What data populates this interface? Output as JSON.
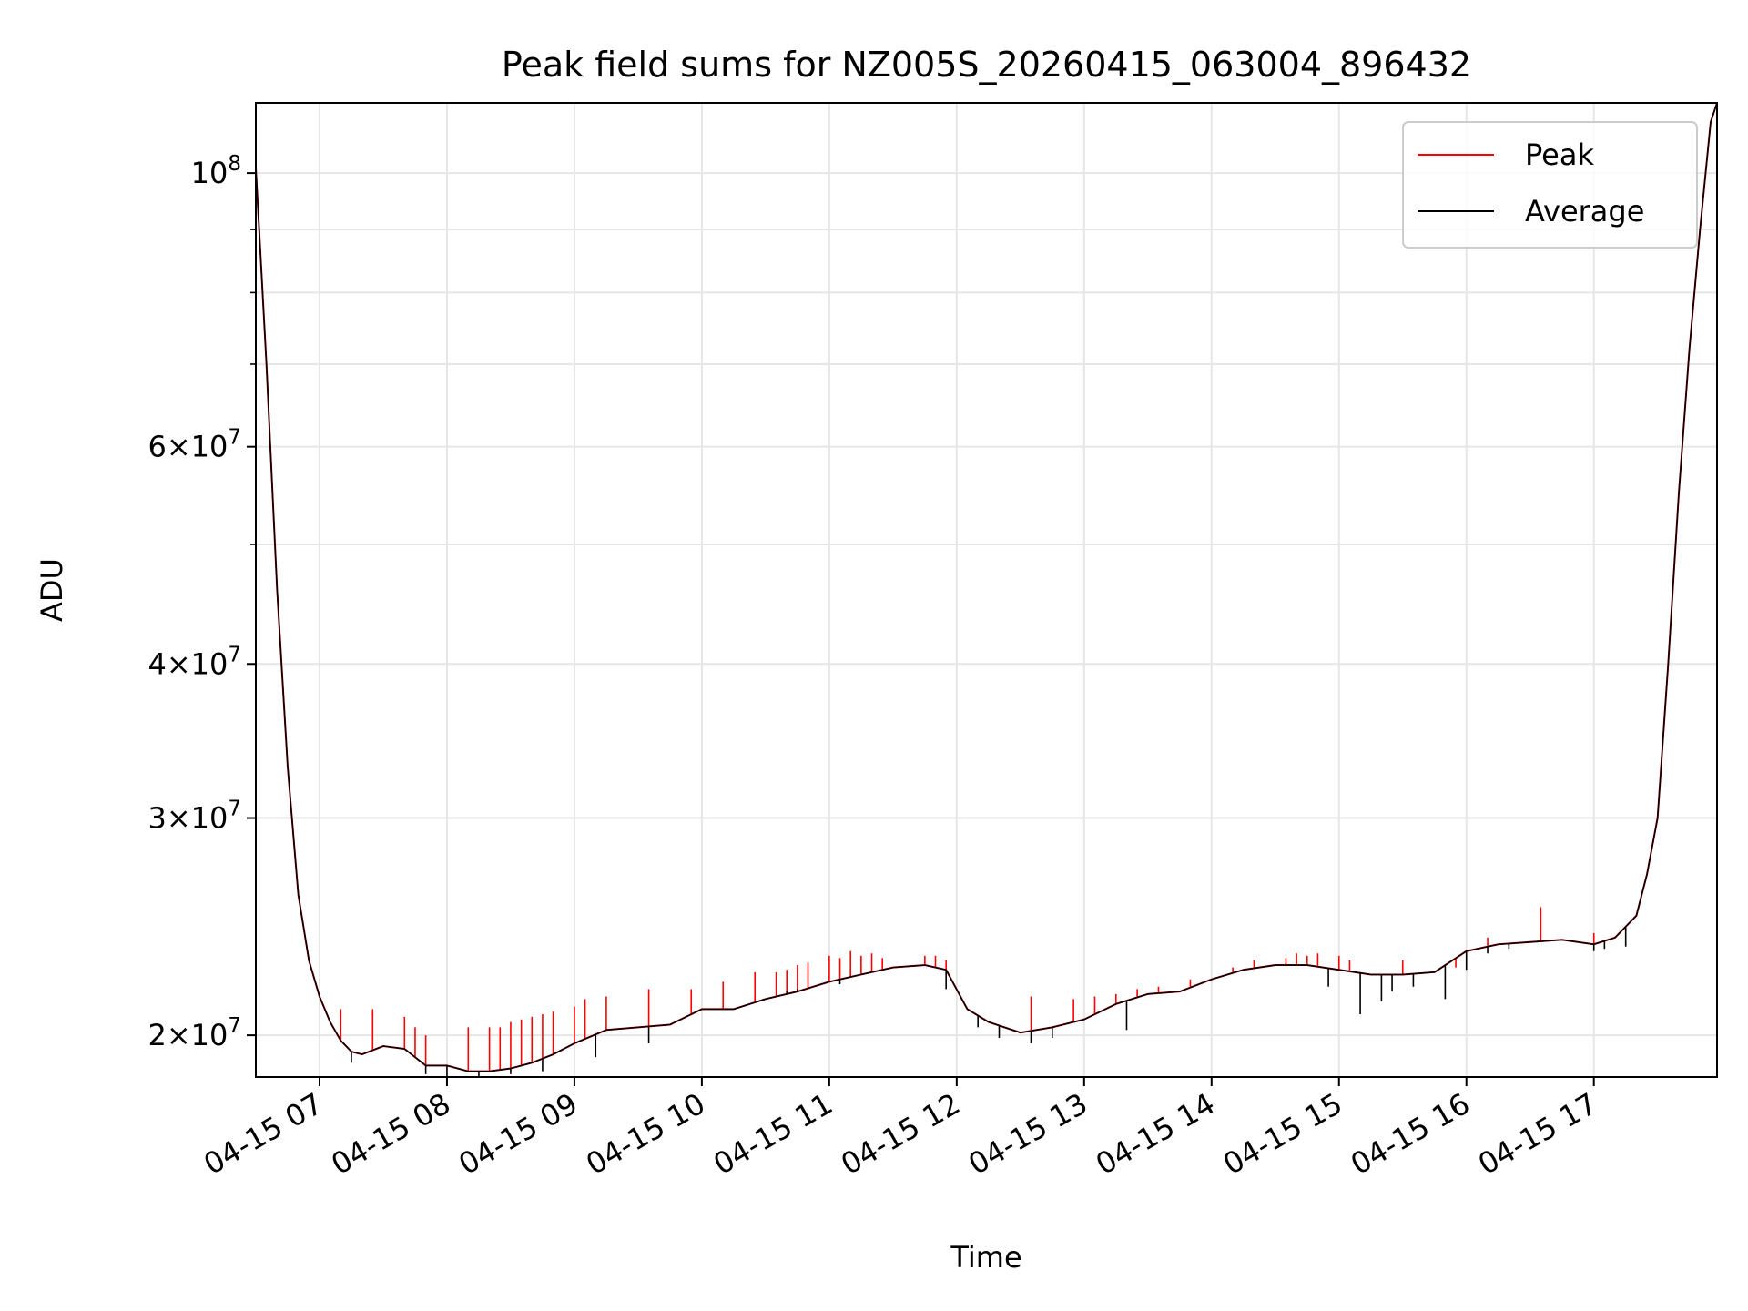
{
  "chart_data": {
    "type": "line",
    "title": "Peak field sums for NZ005S_20260415_063004_896432",
    "xlabel": "Time",
    "ylabel": "ADU",
    "yscale": "log",
    "grid": true,
    "legend_position": "upper right",
    "xlim": [
      "04-15 06:30",
      "04-15 17:58"
    ],
    "ylim": [
      18500000,
      114000000
    ],
    "x_ticks": [
      "04-15 07",
      "04-15 08",
      "04-15 09",
      "04-15 10",
      "04-15 11",
      "04-15 12",
      "04-15 13",
      "04-15 14",
      "04-15 15",
      "04-15 16",
      "04-15 17"
    ],
    "y_major_ticks": [
      {
        "value": 20000000,
        "mant": "2",
        "exp": "7"
      },
      {
        "value": 30000000,
        "mant": "3",
        "exp": "7"
      },
      {
        "value": 40000000,
        "mant": "4",
        "exp": "7"
      },
      {
        "value": 60000000,
        "mant": "6",
        "exp": "7"
      },
      {
        "value": 100000000,
        "mant": "",
        "exp": "8"
      }
    ],
    "y_minor_ticks": [
      50000000,
      70000000,
      80000000,
      90000000
    ],
    "x_labels_are_hour_starts_of_day": "04-15",
    "series": [
      {
        "name": "Peak",
        "color": "#ff0000",
        "x": [
          "06:30",
          "06:35",
          "06:40",
          "06:45",
          "06:50",
          "06:55",
          "07:00",
          "07:05",
          "07:10",
          "07:15",
          "07:20",
          "07:30",
          "07:40",
          "07:50",
          "08:00",
          "08:10",
          "08:20",
          "08:30",
          "08:40",
          "08:50",
          "09:00",
          "09:15",
          "09:30",
          "09:45",
          "10:00",
          "10:15",
          "10:30",
          "10:45",
          "11:00",
          "11:15",
          "11:30",
          "11:45",
          "11:55",
          "12:05",
          "12:15",
          "12:30",
          "12:45",
          "13:00",
          "13:15",
          "13:30",
          "13:45",
          "14:00",
          "14:15",
          "14:30",
          "14:45",
          "15:00",
          "15:15",
          "15:30",
          "15:45",
          "16:00",
          "16:15",
          "16:30",
          "16:45",
          "17:00",
          "17:10",
          "17:20",
          "17:25",
          "17:30",
          "17:35",
          "17:40",
          "17:45",
          "17:50",
          "17:55",
          "17:58"
        ],
        "y": [
          101000000,
          70000000,
          46000000,
          33000000,
          26000000,
          23000000,
          21500000,
          20500000,
          19800000,
          19400000,
          19300000,
          19600000,
          19500000,
          18900000,
          18900000,
          18700000,
          18700000,
          18800000,
          19000000,
          19300000,
          19700000,
          20200000,
          20300000,
          20400000,
          21000000,
          21000000,
          21400000,
          21700000,
          22100000,
          22400000,
          22700000,
          22800000,
          22600000,
          21000000,
          20500000,
          20100000,
          20300000,
          20600000,
          21200000,
          21600000,
          21700000,
          22200000,
          22600000,
          22800000,
          22800000,
          22600000,
          22400000,
          22400000,
          22500000,
          23400000,
          23700000,
          23800000,
          23900000,
          23700000,
          24000000,
          25000000,
          27000000,
          30000000,
          40000000,
          55000000,
          72000000,
          90000000,
          110000000,
          114000000
        ],
        "spike_times": [
          "07:10",
          "07:25",
          "07:40",
          "07:45",
          "07:50",
          "08:10",
          "08:20",
          "08:25",
          "08:30",
          "08:35",
          "08:40",
          "08:45",
          "08:50",
          "09:00",
          "09:05",
          "09:15",
          "09:35",
          "09:55",
          "10:10",
          "10:25",
          "10:35",
          "10:40",
          "10:45",
          "10:50",
          "11:00",
          "11:05",
          "11:10",
          "11:15",
          "11:20",
          "11:25",
          "11:45",
          "11:50",
          "11:55",
          "12:35",
          "12:55",
          "13:05",
          "13:15",
          "13:25",
          "13:35",
          "13:50",
          "14:10",
          "14:20",
          "14:35",
          "14:40",
          "14:45",
          "14:50",
          "15:00",
          "15:05",
          "15:30",
          "15:55",
          "16:05",
          "16:10",
          "16:35",
          "17:00"
        ],
        "spike_values": [
          21000000,
          21000000,
          20700000,
          20300000,
          20000000,
          20300000,
          20300000,
          20300000,
          20500000,
          20600000,
          20700000,
          20800000,
          20900000,
          21100000,
          21400000,
          21500000,
          21800000,
          21800000,
          22100000,
          22500000,
          22500000,
          22600000,
          22800000,
          22900000,
          23200000,
          23100000,
          23400000,
          23200000,
          23300000,
          23100000,
          23200000,
          23200000,
          23000000,
          21500000,
          21400000,
          21500000,
          21600000,
          21800000,
          21900000,
          22200000,
          22700000,
          23000000,
          23100000,
          23300000,
          23200000,
          23300000,
          23200000,
          23000000,
          23000000,
          22700000,
          23500000,
          24000000,
          25400000,
          24200000
        ]
      },
      {
        "name": "Average",
        "color": "#000000",
        "x": [
          "06:30",
          "06:35",
          "06:40",
          "06:45",
          "06:50",
          "06:55",
          "07:00",
          "07:05",
          "07:10",
          "07:15",
          "07:20",
          "07:30",
          "07:40",
          "07:50",
          "08:00",
          "08:10",
          "08:20",
          "08:30",
          "08:40",
          "08:50",
          "09:00",
          "09:15",
          "09:30",
          "09:45",
          "10:00",
          "10:15",
          "10:30",
          "10:45",
          "11:00",
          "11:15",
          "11:30",
          "11:45",
          "11:55",
          "12:05",
          "12:15",
          "12:30",
          "12:45",
          "13:00",
          "13:15",
          "13:30",
          "13:45",
          "14:00",
          "14:15",
          "14:30",
          "14:45",
          "15:00",
          "15:15",
          "15:30",
          "15:45",
          "16:00",
          "16:15",
          "16:30",
          "16:45",
          "17:00",
          "17:10",
          "17:20",
          "17:25",
          "17:30",
          "17:35",
          "17:40",
          "17:45",
          "17:50",
          "17:55",
          "17:58"
        ],
        "y": [
          101000000,
          70000000,
          46000000,
          33000000,
          26000000,
          23000000,
          21500000,
          20500000,
          19800000,
          19400000,
          19300000,
          19600000,
          19500000,
          18900000,
          18900000,
          18700000,
          18700000,
          18800000,
          19000000,
          19300000,
          19700000,
          20200000,
          20300000,
          20400000,
          21000000,
          21000000,
          21400000,
          21700000,
          22100000,
          22400000,
          22700000,
          22800000,
          22600000,
          21000000,
          20500000,
          20100000,
          20300000,
          20600000,
          21200000,
          21600000,
          21700000,
          22200000,
          22600000,
          22800000,
          22800000,
          22600000,
          22400000,
          22400000,
          22500000,
          23400000,
          23700000,
          23800000,
          23900000,
          23700000,
          24000000,
          25000000,
          27000000,
          30000000,
          40000000,
          55000000,
          72000000,
          90000000,
          110000000,
          114000000
        ],
        "dip_times": [
          "07:15",
          "07:50",
          "08:00",
          "08:15",
          "08:30",
          "08:45",
          "09:10",
          "09:35",
          "10:40",
          "10:45",
          "11:05",
          "11:55",
          "12:10",
          "12:20",
          "12:35",
          "12:45",
          "13:20",
          "14:55",
          "15:10",
          "15:20",
          "15:25",
          "15:35",
          "15:50",
          "16:00",
          "16:10",
          "16:20",
          "17:00",
          "17:05",
          "17:15"
        ],
        "dip_values": [
          19000000,
          18600000,
          18500000,
          18500000,
          18600000,
          18700000,
          19200000,
          19700000,
          21700000,
          21800000,
          22000000,
          21800000,
          20300000,
          19900000,
          19700000,
          19900000,
          20200000,
          21900000,
          20800000,
          21300000,
          21700000,
          21900000,
          21400000,
          22600000,
          23300000,
          23500000,
          23400000,
          23500000,
          23600000
        ]
      }
    ]
  }
}
